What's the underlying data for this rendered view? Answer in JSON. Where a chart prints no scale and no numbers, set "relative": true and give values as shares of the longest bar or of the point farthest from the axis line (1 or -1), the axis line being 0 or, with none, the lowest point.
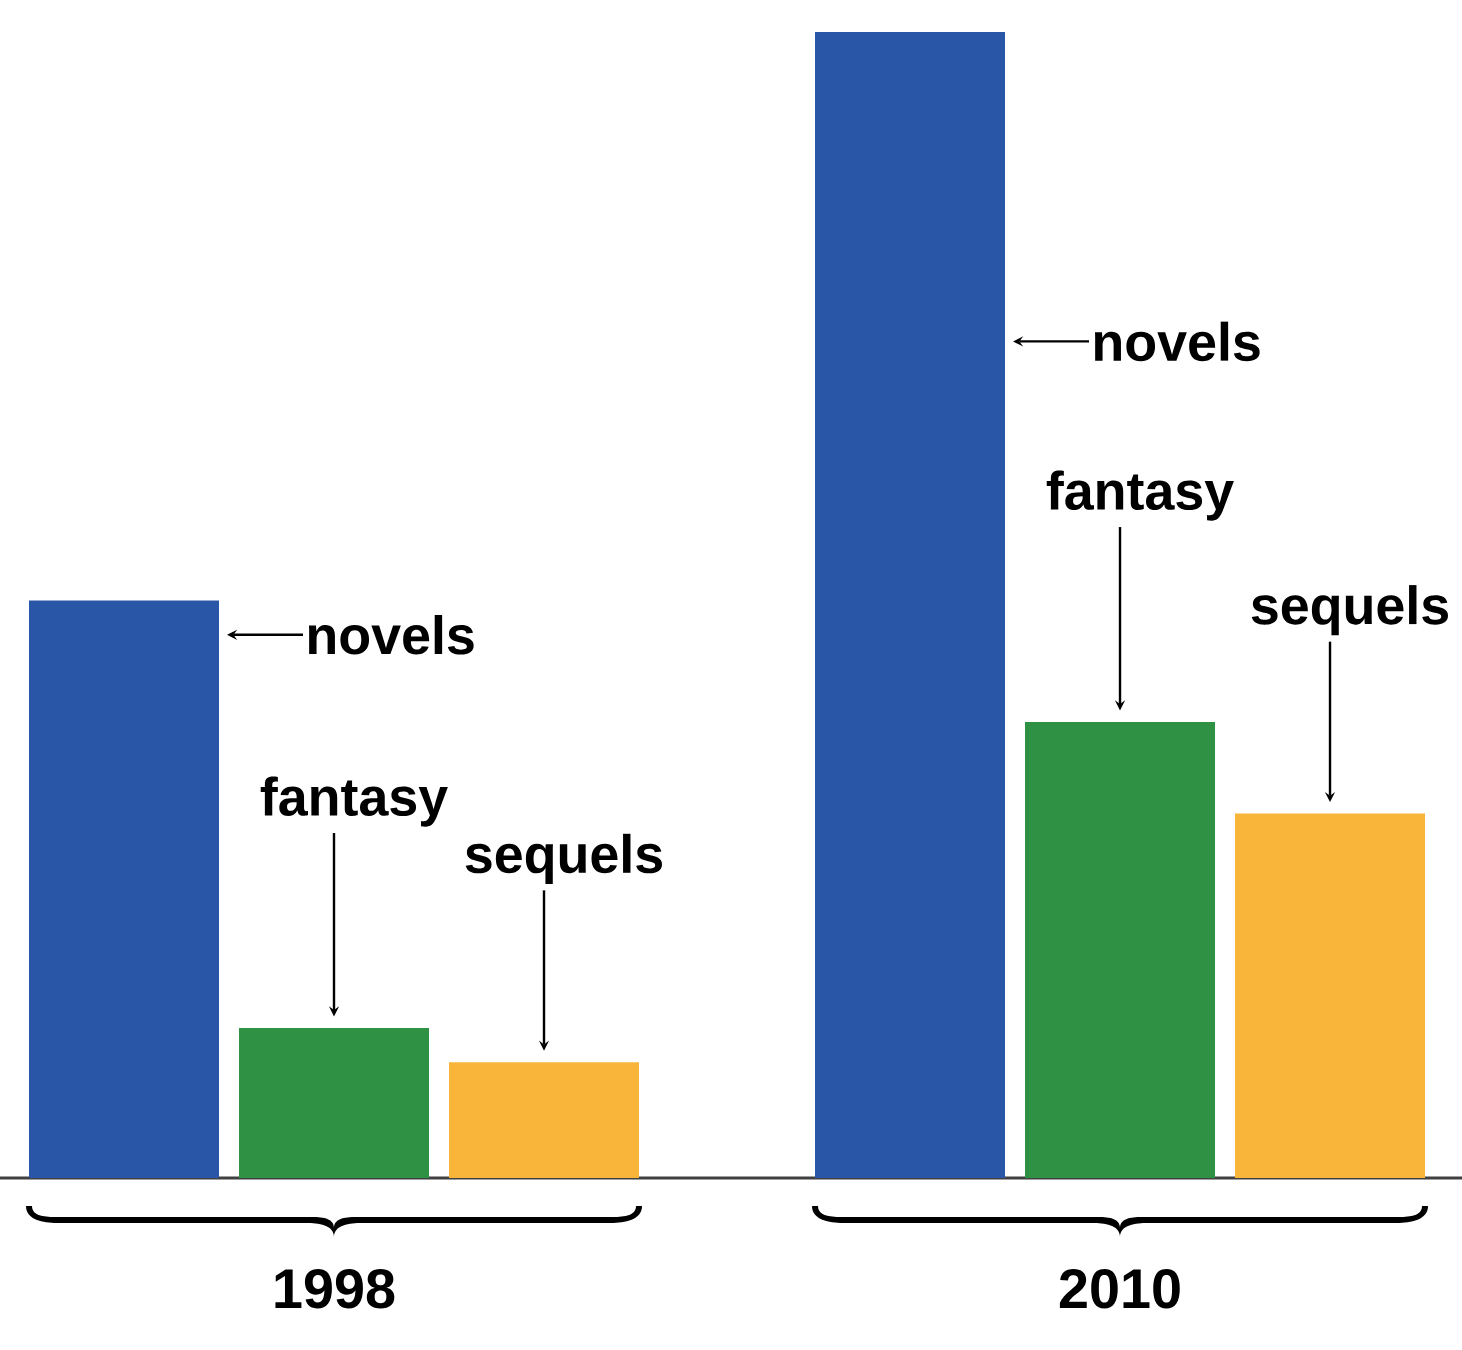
{
  "chart_data": {
    "type": "bar",
    "relative": true,
    "categories": [
      "1998",
      "2010"
    ],
    "series": [
      {
        "name": "novels",
        "color": "#2a56a8",
        "values": [
          0.504,
          1
        ]
      },
      {
        "name": "fantasy",
        "color": "#2e9144",
        "values": [
          0.131,
          0.398
        ]
      },
      {
        "name": "sequels",
        "color": "#f9b53a",
        "values": [
          0.101,
          0.318
        ]
      }
    ]
  }
}
